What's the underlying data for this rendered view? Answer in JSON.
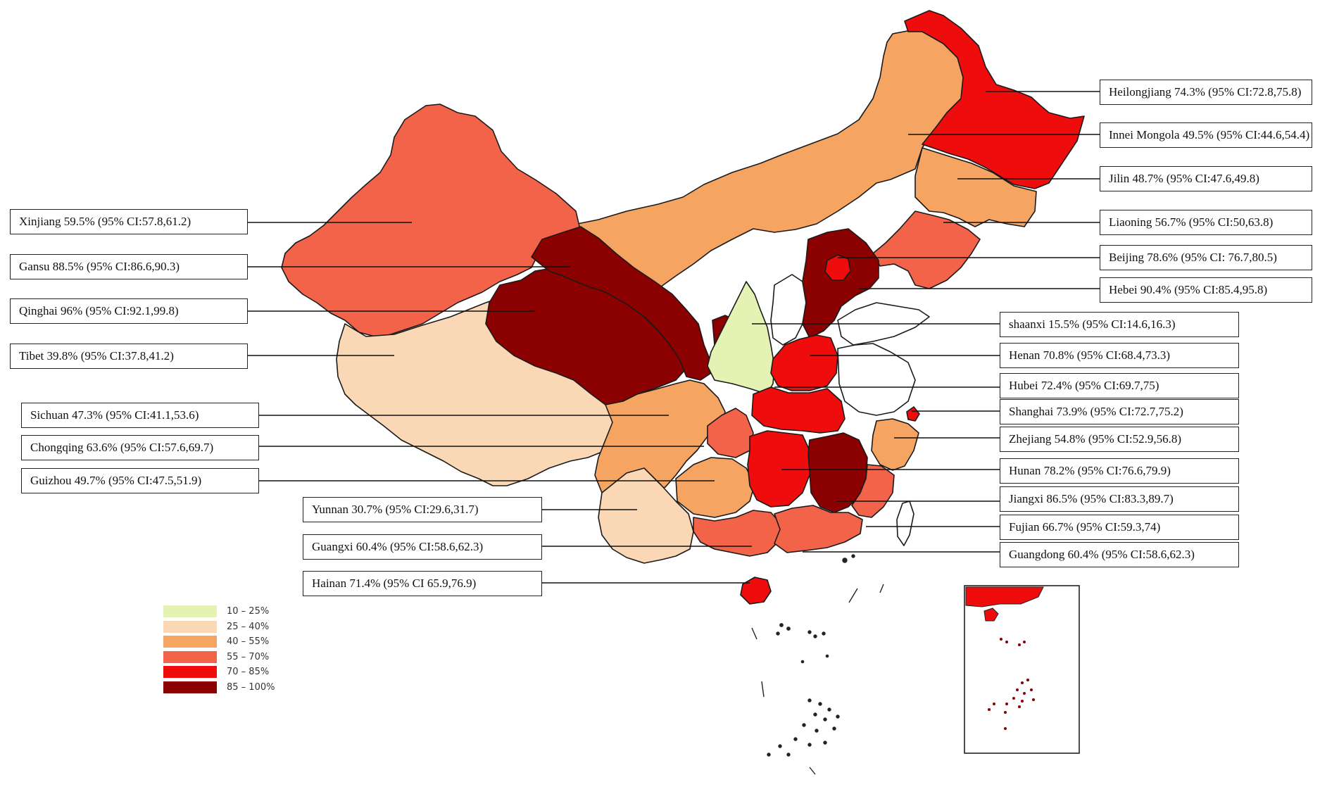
{
  "map": {
    "legend": [
      {
        "label": "10 – 25%",
        "color": "#e4f2b3"
      },
      {
        "label": "25 – 40%",
        "color": "#fad8b5"
      },
      {
        "label": "40 – 55%",
        "color": "#f5a462"
      },
      {
        "label": "55 – 70%",
        "color": "#f2634a"
      },
      {
        "label": "70 – 85%",
        "color": "#ee0c0c"
      },
      {
        "label": "85 – 100%",
        "color": "#8b0000"
      }
    ],
    "provinces": [
      {
        "id": "heilongjiang",
        "label": "Heilongjiang 74.3% (95% CI:72.8,75.8)",
        "value": 74.3,
        "color": "#ee0c0c"
      },
      {
        "id": "innei-mongola",
        "label": "Innei Mongola 49.5% (95% CI:44.6,54.4)",
        "value": 49.5,
        "color": "#f5a462"
      },
      {
        "id": "jilin",
        "label": "Jilin 48.7% (95% CI:47.6,49.8)",
        "value": 48.7,
        "color": "#f5a462"
      },
      {
        "id": "liaoning",
        "label": "Liaoning 56.7% (95% CI:50,63.8)",
        "value": 56.7,
        "color": "#f2634a"
      },
      {
        "id": "beijing",
        "label": "Beijing 78.6% (95% CI: 76.7,80.5)",
        "value": 78.6,
        "color": "#ee0c0c"
      },
      {
        "id": "hebei",
        "label": "Hebei 90.4% (95% CI:85.4,95.8)",
        "value": 90.4,
        "color": "#8b0000"
      },
      {
        "id": "shaanxi",
        "label": "shaanxi 15.5% (95% CI:14.6,16.3)",
        "value": 15.5,
        "color": "#e4f2b3"
      },
      {
        "id": "henan",
        "label": "Henan 70.8% (95% CI:68.4,73.3)",
        "value": 70.8,
        "color": "#ee0c0c"
      },
      {
        "id": "hubei",
        "label": "Hubei 72.4% (95% CI:69.7,75)",
        "value": 72.4,
        "color": "#ee0c0c"
      },
      {
        "id": "shanghai",
        "label": "Shanghai 73.9% (95% CI:72.7,75.2)",
        "value": 73.9,
        "color": "#ee0c0c"
      },
      {
        "id": "zhejiang",
        "label": "Zhejiang 54.8% (95% CI:52.9,56.8)",
        "value": 54.8,
        "color": "#f5a462"
      },
      {
        "id": "hunan",
        "label": "Hunan 78.2% (95% CI:76.6,79.9)",
        "value": 78.2,
        "color": "#ee0c0c"
      },
      {
        "id": "jiangxi",
        "label": "Jiangxi 86.5% (95% CI:83.3,89.7)",
        "value": 86.5,
        "color": "#8b0000"
      },
      {
        "id": "fujian",
        "label": "Fujian 66.7% (95% CI:59.3,74)",
        "value": 66.7,
        "color": "#f2634a"
      },
      {
        "id": "guangdong",
        "label": "Guangdong 60.4% (95% CI:58.6,62.3)",
        "value": 60.4,
        "color": "#f2634a"
      },
      {
        "id": "xinjiang",
        "label": "Xinjiang 59.5% (95% CI:57.8,61.2)",
        "value": 59.5,
        "color": "#f2634a"
      },
      {
        "id": "gansu",
        "label": "Gansu 88.5% (95% CI:86.6,90.3)",
        "value": 88.5,
        "color": "#8b0000"
      },
      {
        "id": "qinghai",
        "label": "Qinghai 96% (95% CI:92.1,99.8)",
        "value": 96,
        "color": "#8b0000"
      },
      {
        "id": "tibet",
        "label": "Tibet 39.8% (95% CI:37.8,41.2)",
        "value": 39.8,
        "color": "#fad8b5"
      },
      {
        "id": "sichuan",
        "label": "Sichuan 47.3% (95% CI:41.1,53.6)",
        "value": 47.3,
        "color": "#f5a462"
      },
      {
        "id": "chongqing",
        "label": "Chongqing 63.6% (95% CI:57.6,69.7)",
        "value": 63.6,
        "color": "#f2634a"
      },
      {
        "id": "guizhou",
        "label": "Guizhou 49.7% (95% CI:47.5,51.9)",
        "value": 49.7,
        "color": "#f5a462"
      },
      {
        "id": "yunnan",
        "label": "Yunnan 30.7% (95% CI:29.6,31.7)",
        "value": 30.7,
        "color": "#fad8b5"
      },
      {
        "id": "guangxi",
        "label": "Guangxi 60.4% (95% CI:58.6,62.3)",
        "value": 60.4,
        "color": "#f2634a"
      },
      {
        "id": "hainan",
        "label": "Hainan 71.4% (95% CI 65.9,76.9)",
        "value": 71.4,
        "color": "#ee0c0c"
      }
    ]
  }
}
